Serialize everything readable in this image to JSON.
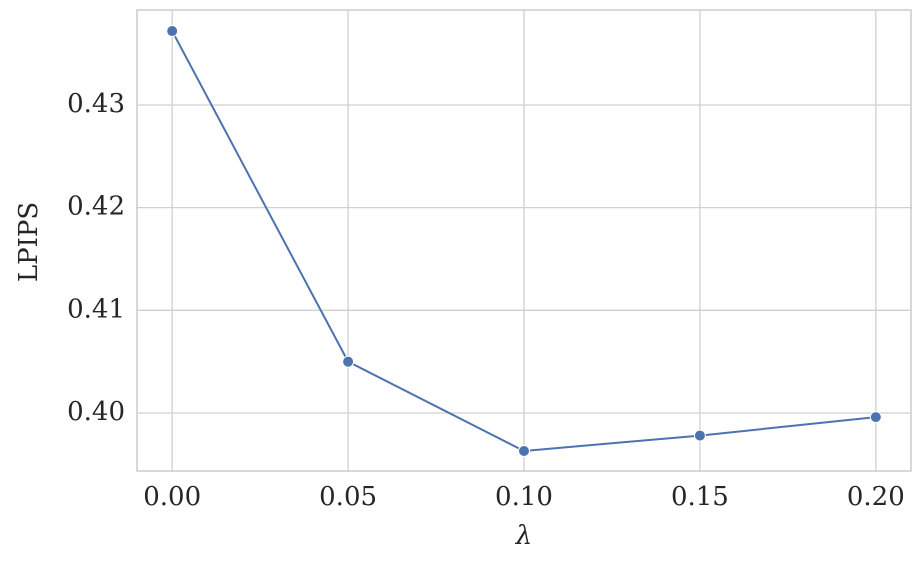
{
  "chart_data": {
    "type": "line",
    "x": [
      0,
      0.05,
      0.1,
      0.15,
      0.2
    ],
    "values": [
      0.4372,
      0.405,
      0.3963,
      0.3978,
      0.3996
    ],
    "color": "#4c72b0",
    "xlabel": "λ",
    "ylabel": "LPIPS",
    "xlim": [
      -0.01,
      0.21
    ],
    "ylim": [
      0.39435,
      0.43925
    ],
    "xticks": [
      {
        "value": 0,
        "label": "0.00"
      },
      0.05,
      {
        "value": 0.1,
        "label": "0.10"
      },
      0.15,
      {
        "value": 0.2,
        "label": "0.20"
      }
    ],
    "yticks": [
      {
        "value": 0.4,
        "label": "0.40"
      },
      0.41,
      0.42,
      0.43
    ],
    "grid": true
  }
}
